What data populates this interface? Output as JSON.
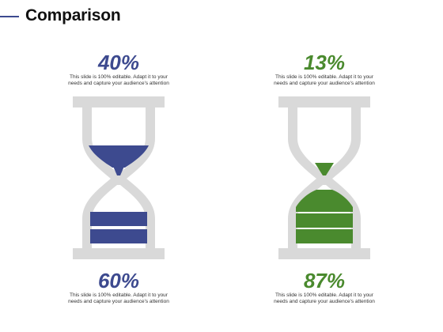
{
  "title": "Comparison",
  "colors": {
    "left": "#3d4a8f",
    "right": "#4a8a2e",
    "glass": "#d9d9d9"
  },
  "left": {
    "top_pct": "40%",
    "bottom_pct": "60%",
    "desc_line1": "This slide is 100% editable. Adapt it to your",
    "desc_line2": "needs and capture your audience's attention"
  },
  "right": {
    "top_pct": "13%",
    "bottom_pct": "87%",
    "desc_line1": "This slide is 100% editable. Adapt it to your",
    "desc_line2": "needs and capture your audience's attention"
  }
}
